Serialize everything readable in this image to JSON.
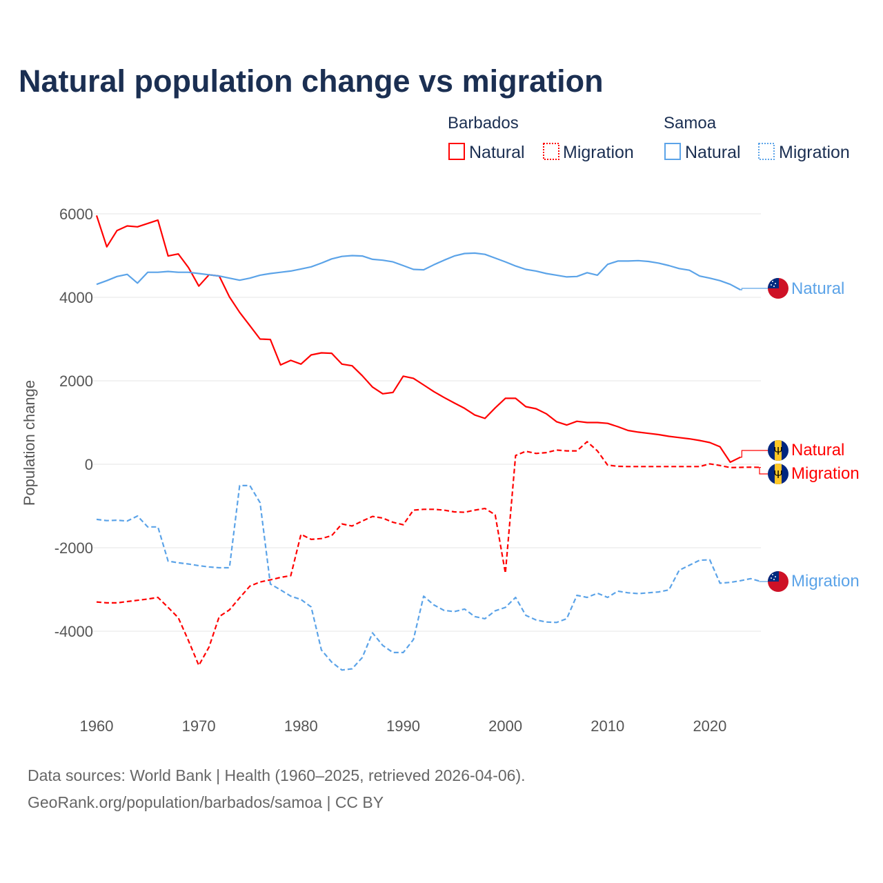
{
  "title": "Natural population change vs migration",
  "legend": {
    "groups": [
      {
        "name": "Barbados",
        "items": [
          "Natural",
          "Migration"
        ]
      },
      {
        "name": "Samoa",
        "items": [
          "Natural",
          "Migration"
        ]
      }
    ]
  },
  "end_labels": {
    "samoa_natural": "Natural",
    "barbados_natural": "Natural",
    "barbados_migration": "Migration",
    "samoa_migration": "Migration"
  },
  "colors": {
    "barbados": "#ff0000",
    "samoa": "#5ba3e8"
  },
  "source": {
    "line1": "Data sources: World Bank | Health (1960–2025, retrieved 2026-04-06).",
    "line2": "GeoRank.org/population/barbados/samoa | CC BY"
  },
  "chart_data": {
    "type": "line",
    "title": "Natural population change vs migration",
    "xlabel": "",
    "ylabel": "Population change",
    "xlim": [
      1960,
      2025
    ],
    "ylim": [
      -4000,
      6000
    ],
    "x_ticks": [
      "1960",
      "1970",
      "1980",
      "1990",
      "2000",
      "2010",
      "2020"
    ],
    "y_ticks": [
      "6000",
      "4000",
      "2000",
      "0",
      "-2000",
      "-4000"
    ],
    "grid": true,
    "legend_position": "top-right",
    "x_start": 1960,
    "series": [
      {
        "name": "Barbados Natural",
        "country": "Barbados",
        "kind": "natural",
        "style": "solid",
        "values": [
          5960,
          5210,
          5600,
          5710,
          5690,
          5770,
          5850,
          4990,
          5040,
          4710,
          4270,
          4540,
          4510,
          4010,
          3640,
          3320,
          3000,
          2990,
          2380,
          2490,
          2400,
          2620,
          2670,
          2660,
          2400,
          2360,
          2120,
          1850,
          1690,
          1720,
          2110,
          2060,
          1900,
          1740,
          1600,
          1470,
          1340,
          1180,
          1100,
          1350,
          1580,
          1580,
          1380,
          1330,
          1210,
          1020,
          940,
          1030,
          1000,
          1000,
          980,
          900,
          810,
          770,
          740,
          710,
          670,
          640,
          610,
          570,
          520,
          420,
          50,
          170
        ]
      },
      {
        "name": "Barbados Migration",
        "country": "Barbados",
        "kind": "migration",
        "style": "dashed",
        "values": [
          -3300,
          -3320,
          -3320,
          -3290,
          -3260,
          -3230,
          -3190,
          -3430,
          -3680,
          -4230,
          -4820,
          -4380,
          -3650,
          -3490,
          -3200,
          -2920,
          -2820,
          -2770,
          -2710,
          -2670,
          -1680,
          -1800,
          -1780,
          -1710,
          -1430,
          -1480,
          -1360,
          -1250,
          -1290,
          -1390,
          -1450,
          -1100,
          -1080,
          -1080,
          -1100,
          -1140,
          -1150,
          -1100,
          -1060,
          -1210,
          -2610,
          210,
          310,
          260,
          280,
          340,
          320,
          320,
          540,
          320,
          -20,
          -50,
          -55,
          -55,
          -55,
          -55,
          -55,
          -55,
          -55,
          -55,
          10,
          -30,
          -80,
          -75,
          -70,
          -75
        ]
      },
      {
        "name": "Samoa Natural",
        "country": "Samoa",
        "kind": "natural",
        "style": "solid",
        "values": [
          4310,
          4400,
          4500,
          4550,
          4340,
          4600,
          4600,
          4620,
          4600,
          4600,
          4570,
          4540,
          4510,
          4460,
          4410,
          4460,
          4530,
          4570,
          4600,
          4630,
          4680,
          4730,
          4820,
          4920,
          4980,
          5000,
          4990,
          4910,
          4890,
          4850,
          4760,
          4670,
          4660,
          4780,
          4890,
          4990,
          5050,
          5060,
          5030,
          4940,
          4850,
          4750,
          4670,
          4630,
          4570,
          4530,
          4490,
          4500,
          4590,
          4530,
          4790,
          4870,
          4870,
          4880,
          4860,
          4820,
          4760,
          4690,
          4650,
          4510,
          4460,
          4400,
          4310,
          4180
        ]
      },
      {
        "name": "Samoa Migration",
        "country": "Samoa",
        "kind": "migration",
        "style": "dashed",
        "values": [
          -1320,
          -1350,
          -1340,
          -1360,
          -1240,
          -1500,
          -1500,
          -2320,
          -2360,
          -2390,
          -2430,
          -2460,
          -2480,
          -2480,
          -510,
          -510,
          -920,
          -2870,
          -3010,
          -3160,
          -3240,
          -3420,
          -4450,
          -4740,
          -4930,
          -4900,
          -4630,
          -4040,
          -4340,
          -4510,
          -4510,
          -4200,
          -3160,
          -3370,
          -3500,
          -3530,
          -3470,
          -3650,
          -3700,
          -3510,
          -3430,
          -3190,
          -3620,
          -3730,
          -3780,
          -3790,
          -3700,
          -3140,
          -3190,
          -3090,
          -3190,
          -3040,
          -3080,
          -3100,
          -3080,
          -3060,
          -3010,
          -2540,
          -2420,
          -2300,
          -2290,
          -2850,
          -2830,
          -2790,
          -2740,
          -2810
        ]
      }
    ]
  }
}
